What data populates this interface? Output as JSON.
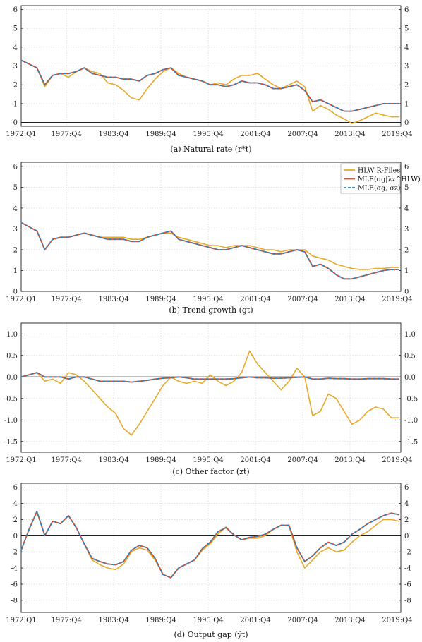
{
  "colors": {
    "hlw": "#e8a92a",
    "mle_sy_lambda": "#d9502a",
    "mle_sy_sz": "#2f7fc1"
  },
  "legend": {
    "hlw": "HLW R-Files",
    "mle_a": "MLE(σg|λz^HLW)",
    "mle_b": "MLE(σg, σz)"
  },
  "chart_data": [
    {
      "type": "line",
      "caption": "(a) Natural rate (r*t)",
      "xticks": [
        "1972:Q1",
        "1977:Q4",
        "1983:Q4",
        "1989:Q4",
        "1995:Q4",
        "2001:Q4",
        "2007:Q4",
        "2013:Q4",
        "2019:Q4"
      ],
      "ylim": [
        -0.2,
        6.2
      ],
      "yticks": [
        0,
        1,
        2,
        3,
        4,
        5,
        6
      ],
      "zero_line": true,
      "x": [
        1972.0,
        1973.0,
        1974.0,
        1975.0,
        1976.0,
        1977.0,
        1978.0,
        1979.0,
        1980.0,
        1981.0,
        1982.0,
        1983.0,
        1984.0,
        1985.0,
        1986.0,
        1987.0,
        1988.0,
        1989.0,
        1990.0,
        1991.0,
        1992.0,
        1993.0,
        1994.0,
        1995.0,
        1996.0,
        1997.0,
        1998.0,
        1999.0,
        2000.0,
        2001.0,
        2002.0,
        2003.0,
        2004.0,
        2005.0,
        2006.0,
        2007.0,
        2008.0,
        2009.0,
        2010.0,
        2011.0,
        2012.0,
        2013.0,
        2014.0,
        2015.0,
        2016.0,
        2017.0,
        2018.0,
        2019.0,
        2020.0
      ],
      "series": [
        {
          "name": "HLW R-Files",
          "color_key": "hlw",
          "dash": false,
          "values": [
            3.3,
            3.1,
            2.9,
            1.9,
            2.5,
            2.6,
            2.4,
            2.7,
            2.9,
            2.7,
            2.6,
            2.1,
            2.0,
            1.7,
            1.3,
            1.2,
            1.8,
            2.3,
            2.7,
            2.9,
            2.6,
            2.4,
            2.3,
            2.2,
            2.0,
            2.1,
            2.0,
            2.3,
            2.5,
            2.5,
            2.6,
            2.3,
            2.0,
            1.8,
            2.0,
            2.2,
            1.9,
            0.6,
            0.9,
            0.7,
            0.4,
            0.2,
            -0.05,
            0.1,
            0.3,
            0.5,
            0.4,
            0.3,
            0.3
          ]
        },
        {
          "name": "MLE(σg|λz^HLW)",
          "color_key": "mle_sy_lambda",
          "dash": false,
          "values": [
            3.3,
            3.1,
            2.9,
            2.0,
            2.5,
            2.6,
            2.6,
            2.7,
            2.9,
            2.6,
            2.5,
            2.4,
            2.4,
            2.3,
            2.3,
            2.2,
            2.5,
            2.6,
            2.8,
            2.9,
            2.5,
            2.4,
            2.3,
            2.2,
            2.0,
            2.0,
            1.9,
            2.0,
            2.2,
            2.1,
            2.1,
            2.0,
            1.8,
            1.8,
            1.9,
            2.0,
            1.7,
            1.1,
            1.2,
            1.0,
            0.8,
            0.6,
            0.6,
            0.7,
            0.8,
            0.9,
            1.0,
            1.0,
            1.0
          ]
        },
        {
          "name": "MLE(σg, σz)",
          "color_key": "mle_sy_sz",
          "dash": true,
          "values": [
            3.3,
            3.1,
            2.9,
            2.0,
            2.5,
            2.6,
            2.6,
            2.7,
            2.9,
            2.6,
            2.5,
            2.4,
            2.4,
            2.3,
            2.3,
            2.2,
            2.5,
            2.6,
            2.8,
            2.9,
            2.5,
            2.4,
            2.3,
            2.2,
            2.0,
            2.0,
            1.9,
            2.0,
            2.2,
            2.1,
            2.1,
            2.0,
            1.8,
            1.8,
            1.9,
            2.0,
            1.7,
            1.1,
            1.2,
            1.0,
            0.8,
            0.6,
            0.6,
            0.7,
            0.8,
            0.9,
            1.0,
            1.0,
            1.0
          ]
        }
      ]
    },
    {
      "type": "line",
      "caption": "(b) Trend growth (gt)",
      "xticks": [
        "1972:Q1",
        "1977:Q4",
        "1983:Q4",
        "1989:Q4",
        "1995:Q4",
        "2001:Q4",
        "2007:Q4",
        "2013:Q4",
        "2019:Q4"
      ],
      "ylim": [
        0,
        6.2
      ],
      "yticks": [
        0,
        1,
        2,
        3,
        4,
        5,
        6
      ],
      "zero_line": false,
      "legend": true,
      "x": [
        1972.0,
        1973.0,
        1974.0,
        1975.0,
        1976.0,
        1977.0,
        1978.0,
        1979.0,
        1980.0,
        1981.0,
        1982.0,
        1983.0,
        1984.0,
        1985.0,
        1986.0,
        1987.0,
        1988.0,
        1989.0,
        1990.0,
        1991.0,
        1992.0,
        1993.0,
        1994.0,
        1995.0,
        1996.0,
        1997.0,
        1998.0,
        1999.0,
        2000.0,
        2001.0,
        2002.0,
        2003.0,
        2004.0,
        2005.0,
        2006.0,
        2007.0,
        2008.0,
        2009.0,
        2010.0,
        2011.0,
        2012.0,
        2013.0,
        2014.0,
        2015.0,
        2016.0,
        2017.0,
        2018.0,
        2019.0,
        2020.0
      ],
      "series": [
        {
          "name": "HLW R-Files",
          "color_key": "hlw",
          "dash": false,
          "values": [
            3.3,
            3.1,
            2.9,
            2.0,
            2.5,
            2.6,
            2.6,
            2.7,
            2.8,
            2.7,
            2.6,
            2.6,
            2.6,
            2.6,
            2.5,
            2.5,
            2.6,
            2.7,
            2.8,
            2.8,
            2.6,
            2.5,
            2.4,
            2.3,
            2.2,
            2.2,
            2.1,
            2.2,
            2.2,
            2.2,
            2.1,
            2.0,
            2.0,
            1.9,
            2.0,
            2.0,
            2.0,
            1.7,
            1.6,
            1.5,
            1.3,
            1.2,
            1.1,
            1.05,
            1.05,
            1.1,
            1.1,
            1.15,
            1.15
          ]
        },
        {
          "name": "MLE(σg|λz^HLW)",
          "color_key": "mle_sy_lambda",
          "dash": false,
          "values": [
            3.3,
            3.1,
            2.9,
            2.0,
            2.5,
            2.6,
            2.6,
            2.7,
            2.8,
            2.7,
            2.6,
            2.5,
            2.5,
            2.5,
            2.4,
            2.4,
            2.6,
            2.7,
            2.8,
            2.9,
            2.5,
            2.4,
            2.3,
            2.2,
            2.1,
            2.0,
            2.0,
            2.1,
            2.2,
            2.1,
            2.0,
            1.9,
            1.8,
            1.8,
            1.9,
            2.0,
            1.9,
            1.2,
            1.3,
            1.1,
            0.8,
            0.6,
            0.6,
            0.7,
            0.8,
            0.9,
            1.0,
            1.05,
            1.05
          ]
        },
        {
          "name": "MLE(σg, σz)",
          "color_key": "mle_sy_sz",
          "dash": true,
          "values": [
            3.3,
            3.1,
            2.9,
            2.0,
            2.5,
            2.6,
            2.6,
            2.7,
            2.8,
            2.7,
            2.6,
            2.5,
            2.5,
            2.5,
            2.4,
            2.4,
            2.6,
            2.7,
            2.8,
            2.9,
            2.5,
            2.4,
            2.3,
            2.2,
            2.1,
            2.0,
            2.0,
            2.1,
            2.2,
            2.1,
            2.0,
            1.9,
            1.8,
            1.8,
            1.9,
            2.0,
            1.9,
            1.2,
            1.3,
            1.1,
            0.8,
            0.6,
            0.6,
            0.7,
            0.8,
            0.9,
            1.0,
            1.05,
            1.05
          ]
        }
      ]
    },
    {
      "type": "line",
      "caption": "(c) Other factor (zt)",
      "xticks": [
        "1972:Q1",
        "1977:Q4",
        "1983:Q4",
        "1989:Q4",
        "1995:Q4",
        "2001:Q4",
        "2007:Q4",
        "2013:Q4",
        "2019:Q4"
      ],
      "ylim": [
        -1.75,
        1.25
      ],
      "yticks": [
        -1.5,
        -1.0,
        -0.5,
        0.0,
        0.5,
        1.0
      ],
      "ytick_labels": [
        "-1.5",
        "-1.0",
        "-0.5",
        "0.0",
        "0.5",
        "1.0"
      ],
      "zero_line": true,
      "x": [
        1972.0,
        1973.0,
        1974.0,
        1975.0,
        1976.0,
        1977.0,
        1978.0,
        1979.0,
        1980.0,
        1981.0,
        1982.0,
        1983.0,
        1984.0,
        1985.0,
        1986.0,
        1987.0,
        1988.0,
        1989.0,
        1990.0,
        1991.0,
        1992.0,
        1993.0,
        1994.0,
        1995.0,
        1996.0,
        1997.0,
        1998.0,
        1999.0,
        2000.0,
        2001.0,
        2002.0,
        2003.0,
        2004.0,
        2005.0,
        2006.0,
        2007.0,
        2008.0,
        2009.0,
        2010.0,
        2011.0,
        2012.0,
        2013.0,
        2014.0,
        2015.0,
        2016.0,
        2017.0,
        2018.0,
        2019.0,
        2020.0
      ],
      "series": [
        {
          "name": "HLW R-Files",
          "color_key": "hlw",
          "dash": false,
          "values": [
            0.0,
            0.05,
            0.1,
            -0.1,
            -0.05,
            -0.15,
            0.1,
            0.05,
            -0.1,
            -0.3,
            -0.5,
            -0.7,
            -0.85,
            -1.2,
            -1.35,
            -1.1,
            -0.8,
            -0.5,
            -0.2,
            0.0,
            -0.1,
            -0.15,
            -0.1,
            -0.15,
            0.05,
            -0.1,
            -0.2,
            -0.1,
            0.1,
            0.6,
            0.3,
            0.1,
            -0.1,
            -0.3,
            -0.1,
            0.2,
            0.0,
            -0.9,
            -0.8,
            -0.4,
            -0.5,
            -0.8,
            -1.1,
            -1.0,
            -0.8,
            -0.7,
            -0.75,
            -0.95,
            -0.95
          ]
        },
        {
          "name": "MLE(σg|λz^HLW)",
          "color_key": "mle_sy_lambda",
          "dash": false,
          "values": [
            0.0,
            0.05,
            0.1,
            0.0,
            0.0,
            0.0,
            -0.05,
            0.0,
            0.0,
            -0.05,
            -0.1,
            -0.1,
            -0.1,
            -0.1,
            -0.12,
            -0.1,
            -0.08,
            -0.05,
            -0.03,
            -0.02,
            0.0,
            -0.02,
            -0.05,
            -0.05,
            -0.05,
            -0.05,
            -0.05,
            -0.04,
            -0.02,
            0.0,
            -0.02,
            -0.02,
            -0.03,
            -0.03,
            -0.02,
            -0.01,
            0.0,
            -0.05,
            -0.05,
            -0.03,
            -0.04,
            -0.04,
            -0.05,
            -0.05,
            -0.04,
            -0.04,
            -0.04,
            -0.05,
            -0.05
          ]
        },
        {
          "name": "MLE(σg, σz)",
          "color_key": "mle_sy_sz",
          "dash": true,
          "values": [
            0.0,
            0.05,
            0.1,
            0.0,
            0.0,
            0.0,
            -0.05,
            0.0,
            0.0,
            -0.05,
            -0.1,
            -0.1,
            -0.1,
            -0.1,
            -0.12,
            -0.1,
            -0.08,
            -0.05,
            -0.03,
            -0.02,
            0.0,
            -0.02,
            -0.05,
            -0.05,
            -0.05,
            -0.05,
            -0.05,
            -0.04,
            -0.02,
            0.0,
            -0.02,
            -0.02,
            -0.03,
            -0.03,
            -0.02,
            -0.01,
            0.0,
            -0.05,
            -0.05,
            -0.03,
            -0.04,
            -0.04,
            -0.05,
            -0.05,
            -0.04,
            -0.04,
            -0.04,
            -0.05,
            -0.05
          ]
        }
      ]
    },
    {
      "type": "line",
      "caption": "(d) Output gap (ỹt)",
      "xticks": [
        "1972:Q1",
        "1977:Q4",
        "1983:Q4",
        "1989:Q4",
        "1995:Q4",
        "2001:Q4",
        "2007:Q4",
        "2013:Q4",
        "2019:Q4"
      ],
      "ylim": [
        -9.5,
        6.5
      ],
      "yticks": [
        -8,
        -6,
        -4,
        -2,
        0,
        2,
        4,
        6
      ],
      "zero_line": true,
      "x": [
        1972.0,
        1973.0,
        1974.0,
        1975.0,
        1976.0,
        1977.0,
        1978.0,
        1979.0,
        1980.0,
        1981.0,
        1982.0,
        1983.0,
        1984.0,
        1985.0,
        1986.0,
        1987.0,
        1988.0,
        1989.0,
        1990.0,
        1991.0,
        1992.0,
        1993.0,
        1994.0,
        1995.0,
        1996.0,
        1997.0,
        1998.0,
        1999.0,
        2000.0,
        2001.0,
        2002.0,
        2003.0,
        2004.0,
        2005.0,
        2006.0,
        2007.0,
        2008.0,
        2009.0,
        2010.0,
        2011.0,
        2012.0,
        2013.0,
        2014.0,
        2015.0,
        2016.0,
        2017.0,
        2018.0,
        2019.0,
        2020.0
      ],
      "series": [
        {
          "name": "HLW R-Files",
          "color_key": "hlw",
          "dash": false,
          "values": [
            -1.8,
            0.8,
            3.0,
            0.0,
            1.8,
            1.5,
            2.5,
            1.0,
            -1.0,
            -3.0,
            -3.6,
            -4.0,
            -4.2,
            -3.5,
            -2.0,
            -1.5,
            -1.8,
            -3.0,
            -4.8,
            -5.2,
            -4.0,
            -3.5,
            -3.0,
            -1.8,
            -1.0,
            0.2,
            1.1,
            0.1,
            -0.5,
            -0.3,
            -0.3,
            0.0,
            0.8,
            1.3,
            1.2,
            -2.0,
            -4.0,
            -3.0,
            -2.0,
            -1.5,
            -2.0,
            -1.8,
            -0.8,
            0.0,
            0.5,
            1.3,
            2.0,
            2.0,
            1.8
          ]
        },
        {
          "name": "MLE(σg|λz^HLW)",
          "color_key": "mle_sy_lambda",
          "dash": false,
          "values": [
            -1.8,
            0.8,
            3.0,
            0.0,
            1.8,
            1.5,
            2.5,
            1.0,
            -1.0,
            -2.8,
            -3.2,
            -3.5,
            -3.6,
            -3.2,
            -1.8,
            -1.2,
            -1.5,
            -2.8,
            -4.8,
            -5.2,
            -4.0,
            -3.5,
            -3.0,
            -1.6,
            -0.8,
            0.5,
            1.0,
            0.1,
            -0.5,
            -0.2,
            -0.1,
            0.2,
            0.8,
            1.3,
            1.3,
            -1.5,
            -3.2,
            -2.5,
            -1.5,
            -0.8,
            -1.2,
            -0.8,
            0.2,
            0.8,
            1.5,
            2.0,
            2.5,
            2.8,
            2.6
          ]
        },
        {
          "name": "MLE(σg, σz)",
          "color_key": "mle_sy_sz",
          "dash": true,
          "values": [
            -1.8,
            0.8,
            3.0,
            0.0,
            1.8,
            1.5,
            2.5,
            1.0,
            -1.0,
            -2.8,
            -3.2,
            -3.5,
            -3.6,
            -3.2,
            -1.8,
            -1.2,
            -1.5,
            -2.8,
            -4.8,
            -5.2,
            -4.0,
            -3.5,
            -3.0,
            -1.6,
            -0.8,
            0.5,
            1.0,
            0.1,
            -0.5,
            -0.2,
            -0.1,
            0.2,
            0.8,
            1.3,
            1.3,
            -1.5,
            -3.2,
            -2.5,
            -1.5,
            -0.8,
            -1.2,
            -0.8,
            0.2,
            0.8,
            1.5,
            2.0,
            2.5,
            2.8,
            2.6
          ]
        }
      ]
    }
  ]
}
